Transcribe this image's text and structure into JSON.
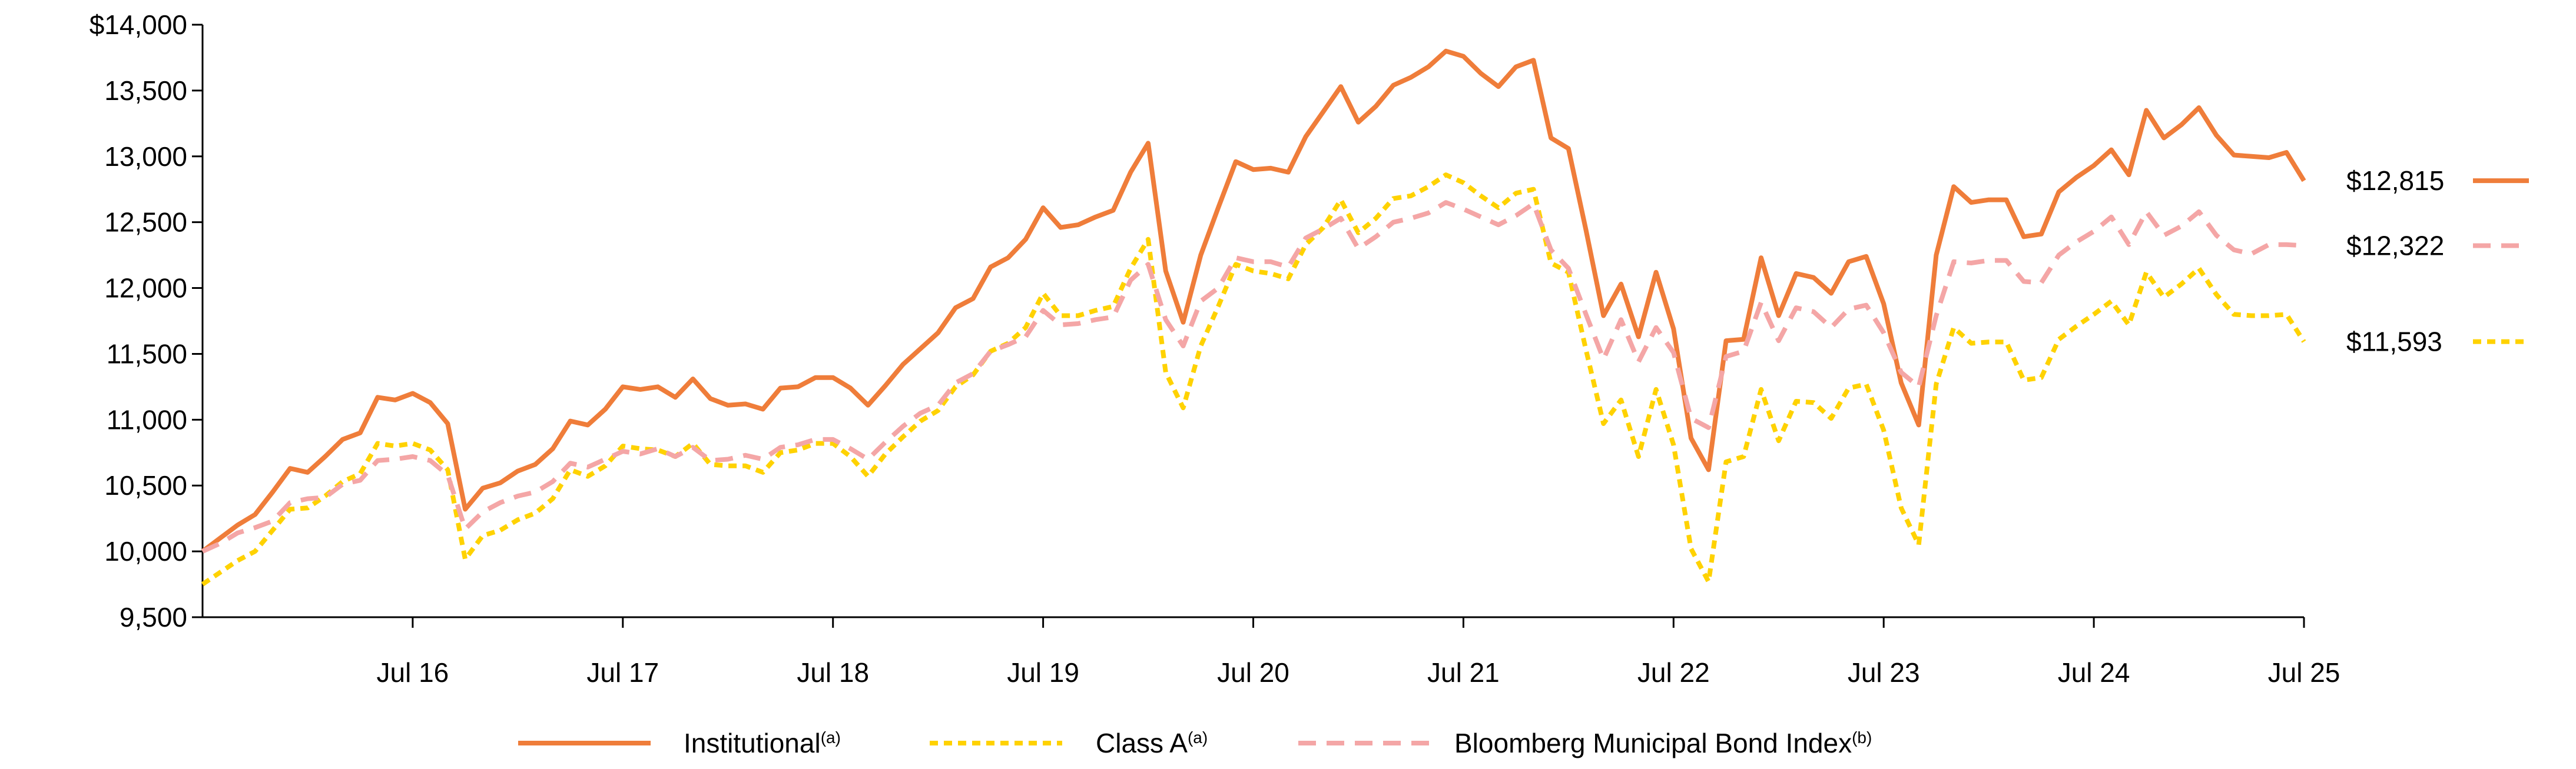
{
  "chart_data": {
    "type": "line",
    "categories": [
      null,
      null,
      null,
      null,
      null,
      null,
      null,
      null,
      null,
      null,
      null,
      null,
      "Jul 16",
      null,
      null,
      null,
      null,
      null,
      null,
      null,
      null,
      null,
      null,
      null,
      "Jul 17",
      null,
      null,
      null,
      null,
      null,
      null,
      null,
      null,
      null,
      null,
      null,
      "Jul 18",
      null,
      null,
      null,
      null,
      null,
      null,
      null,
      null,
      null,
      null,
      null,
      "Jul 19",
      null,
      null,
      null,
      null,
      null,
      null,
      null,
      null,
      null,
      null,
      null,
      "Jul 20",
      null,
      null,
      null,
      null,
      null,
      null,
      null,
      null,
      null,
      null,
      null,
      "Jul 21",
      null,
      null,
      null,
      null,
      null,
      null,
      null,
      null,
      null,
      null,
      null,
      "Jul 22",
      null,
      null,
      null,
      null,
      null,
      null,
      null,
      null,
      null,
      null,
      null,
      "Jul 23",
      null,
      null,
      null,
      null,
      null,
      null,
      null,
      null,
      null,
      null,
      null,
      "Jul 24",
      null,
      null,
      null,
      null,
      null,
      null,
      null,
      null,
      null,
      null,
      null,
      "Jul 25"
    ],
    "ylim": [
      9500,
      14000
    ],
    "yticks": [
      {
        "value": 9500,
        "label": "9,500"
      },
      {
        "value": 10000,
        "label": "10,000"
      },
      {
        "value": 10500,
        "label": "10,500"
      },
      {
        "value": 11000,
        "label": "11,000"
      },
      {
        "value": 11500,
        "label": "11,500"
      },
      {
        "value": 12000,
        "label": "12,000"
      },
      {
        "value": 12500,
        "label": "12,500"
      },
      {
        "value": 13000,
        "label": "13,000"
      },
      {
        "value": 13500,
        "label": "13,500"
      },
      {
        "value": 14000,
        "label": "$14,000"
      }
    ],
    "grid": false,
    "legend": "bottom",
    "series": [
      {
        "name": "Institutional",
        "superscript": "(a)",
        "color": "#ef7d3a",
        "dash": "solid",
        "values": [
          10000,
          10100,
          10200,
          10280,
          10450,
          10630,
          10600,
          10720,
          10850,
          10900,
          11170,
          11150,
          11200,
          11130,
          10970,
          10320,
          10480,
          10520,
          10610,
          10660,
          10780,
          10990,
          10960,
          11080,
          11250,
          11230,
          11250,
          11170,
          11310,
          11160,
          11110,
          11120,
          11080,
          11240,
          11250,
          11320,
          11320,
          11240,
          11110,
          11260,
          11420,
          11540,
          11660,
          11850,
          11920,
          12160,
          12230,
          12370,
          12610,
          12460,
          12480,
          12540,
          12590,
          12880,
          13100,
          12130,
          11740,
          12250,
          12610,
          12960,
          12900,
          12910,
          12880,
          13150,
          13340,
          13530,
          13260,
          13380,
          13540,
          13600,
          13680,
          13800,
          13760,
          13630,
          13530,
          13680,
          13730,
          13140,
          13060,
          12440,
          11790,
          12030,
          11630,
          12120,
          11690,
          10860,
          10620,
          11600,
          11610,
          12230,
          11790,
          12110,
          12080,
          11960,
          12200,
          12240,
          11880,
          11280,
          10960,
          12250,
          12770,
          12650,
          12670,
          12670,
          12390,
          12410,
          12730,
          12840,
          12930,
          13050,
          12860,
          13350,
          13140,
          13240,
          13370,
          13160,
          13010,
          13000,
          12990,
          13030,
          12815
        ],
        "value_labels": [
          null,
          null,
          null,
          null,
          null,
          null,
          null,
          null,
          null,
          null,
          null,
          null,
          null,
          null,
          null,
          null,
          null,
          null,
          null,
          null,
          null,
          null,
          null,
          null,
          null,
          null,
          null,
          null,
          null,
          null,
          null,
          null,
          null,
          null,
          null,
          null,
          null,
          null,
          null,
          null,
          null,
          null,
          null,
          null,
          null,
          null,
          null,
          null,
          null,
          null,
          null,
          null,
          null,
          null,
          null,
          null,
          null,
          null,
          null,
          null,
          null,
          null,
          null,
          null,
          null,
          null,
          null,
          null,
          null,
          null,
          null,
          null,
          null,
          null,
          null,
          null,
          null,
          null,
          null,
          null,
          null,
          null,
          null,
          null,
          null,
          null,
          null,
          null,
          null,
          null,
          null,
          null,
          null,
          null,
          null,
          null,
          null,
          null,
          null,
          null,
          null,
          null,
          null,
          null,
          null,
          null,
          null,
          null,
          null,
          null,
          null,
          null,
          null,
          null,
          null,
          null,
          null,
          null,
          null,
          null,
          "$12,815"
        ]
      },
      {
        "name": "Class A",
        "superscript": "(a)",
        "color": "#ffd200",
        "dash": "dotted",
        "values": [
          9750,
          9840,
          9930,
          10000,
          10160,
          10320,
          10330,
          10420,
          10530,
          10590,
          10820,
          10800,
          10820,
          10770,
          10620,
          9940,
          10120,
          10160,
          10240,
          10290,
          10400,
          10620,
          10570,
          10650,
          10800,
          10780,
          10770,
          10720,
          10820,
          10660,
          10650,
          10650,
          10600,
          10750,
          10770,
          10820,
          10820,
          10720,
          10570,
          10740,
          10870,
          10990,
          11070,
          11250,
          11340,
          11520,
          11580,
          11700,
          11960,
          11790,
          11790,
          11830,
          11860,
          12150,
          12370,
          11360,
          11090,
          11560,
          11860,
          12180,
          12130,
          12110,
          12070,
          12330,
          12460,
          12670,
          12420,
          12530,
          12680,
          12700,
          12770,
          12860,
          12800,
          12700,
          12610,
          12720,
          12750,
          12190,
          12120,
          11530,
          10970,
          11150,
          10720,
          11230,
          10810,
          10020,
          9770,
          10680,
          10720,
          11230,
          10840,
          11140,
          11130,
          11010,
          11240,
          11270,
          10920,
          10330,
          10050,
          11270,
          11700,
          11580,
          11590,
          11590,
          11300,
          11320,
          11610,
          11710,
          11800,
          11900,
          11720,
          12120,
          11930,
          12030,
          12150,
          11950,
          11800,
          11790,
          11790,
          11800,
          11593
        ],
        "value_labels": [
          null,
          null,
          null,
          null,
          null,
          null,
          null,
          null,
          null,
          null,
          null,
          null,
          null,
          null,
          null,
          null,
          null,
          null,
          null,
          null,
          null,
          null,
          null,
          null,
          null,
          null,
          null,
          null,
          null,
          null,
          null,
          null,
          null,
          null,
          null,
          null,
          null,
          null,
          null,
          null,
          null,
          null,
          null,
          null,
          null,
          null,
          null,
          null,
          null,
          null,
          null,
          null,
          null,
          null,
          null,
          null,
          null,
          null,
          null,
          null,
          null,
          null,
          null,
          null,
          null,
          null,
          null,
          null,
          null,
          null,
          null,
          null,
          null,
          null,
          null,
          null,
          null,
          null,
          null,
          null,
          null,
          null,
          null,
          null,
          null,
          null,
          null,
          null,
          null,
          null,
          null,
          null,
          null,
          null,
          null,
          null,
          null,
          null,
          null,
          null,
          null,
          null,
          null,
          null,
          null,
          null,
          null,
          null,
          null,
          null,
          null,
          null,
          null,
          null,
          null,
          null,
          null,
          null,
          null,
          null,
          "$11,593"
        ]
      },
      {
        "name": "Bloomberg Municipal Bond Index",
        "superscript": "(b)",
        "color": "#f4a6a6",
        "dash": "dashed",
        "values": [
          10000,
          10060,
          10140,
          10180,
          10230,
          10370,
          10400,
          10410,
          10510,
          10540,
          10690,
          10700,
          10720,
          10690,
          10580,
          10170,
          10300,
          10370,
          10420,
          10450,
          10530,
          10670,
          10640,
          10700,
          10760,
          10740,
          10780,
          10720,
          10790,
          10690,
          10700,
          10730,
          10700,
          10790,
          10810,
          10850,
          10850,
          10780,
          10700,
          10830,
          10950,
          11050,
          11110,
          11280,
          11350,
          11520,
          11570,
          11630,
          11830,
          11720,
          11730,
          11760,
          11780,
          12060,
          12180,
          11760,
          11560,
          11900,
          12000,
          12230,
          12200,
          12200,
          12160,
          12380,
          12450,
          12530,
          12300,
          12390,
          12500,
          12530,
          12570,
          12650,
          12600,
          12540,
          12480,
          12550,
          12640,
          12290,
          12150,
          11800,
          11460,
          11760,
          11440,
          11700,
          11510,
          11010,
          10940,
          11480,
          11520,
          11890,
          11600,
          11850,
          11820,
          11700,
          11840,
          11870,
          11660,
          11360,
          11250,
          11790,
          12200,
          12190,
          12210,
          12210,
          12050,
          12040,
          12250,
          12350,
          12430,
          12540,
          12330,
          12580,
          12400,
          12470,
          12580,
          12400,
          12290,
          12260,
          12330,
          12330,
          12322
        ],
        "value_labels": [
          null,
          null,
          null,
          null,
          null,
          null,
          null,
          null,
          null,
          null,
          null,
          null,
          null,
          null,
          null,
          null,
          null,
          null,
          null,
          null,
          null,
          null,
          null,
          null,
          null,
          null,
          null,
          null,
          null,
          null,
          null,
          null,
          null,
          null,
          null,
          null,
          null,
          null,
          null,
          null,
          null,
          null,
          null,
          null,
          null,
          null,
          null,
          null,
          null,
          null,
          null,
          null,
          null,
          null,
          null,
          null,
          null,
          null,
          null,
          null,
          null,
          null,
          null,
          null,
          null,
          null,
          null,
          null,
          null,
          null,
          null,
          null,
          null,
          null,
          null,
          null,
          null,
          null,
          null,
          null,
          null,
          null,
          null,
          null,
          null,
          null,
          null,
          null,
          null,
          null,
          null,
          null,
          null,
          null,
          null,
          null,
          null,
          null,
          null,
          null,
          null,
          null,
          null,
          null,
          null,
          null,
          null,
          null,
          null,
          null,
          null,
          null,
          null,
          null,
          null,
          null,
          null,
          null,
          null,
          null,
          "$12,322"
        ]
      }
    ]
  }
}
